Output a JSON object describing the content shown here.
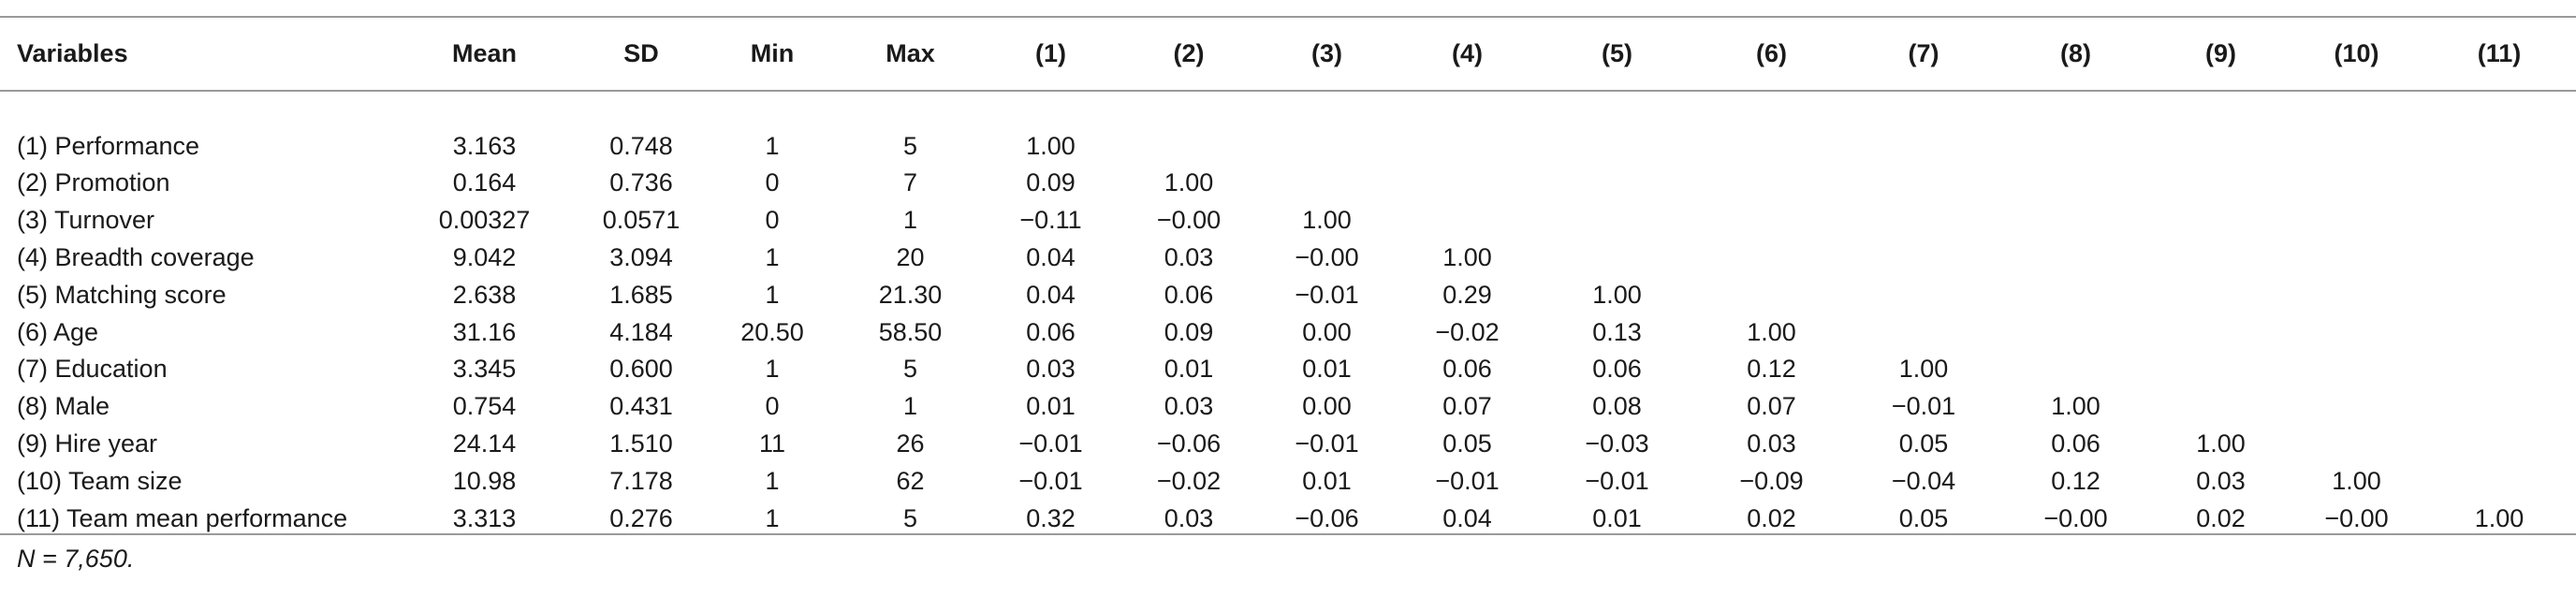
{
  "table": {
    "headers": [
      "Variables",
      "Mean",
      "SD",
      "Min",
      "Max",
      "(1)",
      "(2)",
      "(3)",
      "(4)",
      "(5)",
      "(6)",
      "(7)",
      "(8)",
      "(9)",
      "(10)",
      "(11)"
    ],
    "rows": [
      [
        "(1) Performance",
        "3.163",
        "0.748",
        "1",
        "5",
        "1.00",
        "",
        "",
        "",
        "",
        "",
        "",
        "",
        "",
        "",
        ""
      ],
      [
        "(2) Promotion",
        "0.164",
        "0.736",
        "0",
        "7",
        "0.09",
        "1.00",
        "",
        "",
        "",
        "",
        "",
        "",
        "",
        "",
        ""
      ],
      [
        "(3) Turnover",
        "0.00327",
        "0.0571",
        "0",
        "1",
        "−0.11",
        "−0.00",
        "1.00",
        "",
        "",
        "",
        "",
        "",
        "",
        "",
        ""
      ],
      [
        "(4) Breadth coverage",
        "9.042",
        "3.094",
        "1",
        "20",
        "0.04",
        "0.03",
        "−0.00",
        "1.00",
        "",
        "",
        "",
        "",
        "",
        "",
        ""
      ],
      [
        "(5) Matching score",
        "2.638",
        "1.685",
        "1",
        "21.30",
        "0.04",
        "0.06",
        "−0.01",
        "0.29",
        "1.00",
        "",
        "",
        "",
        "",
        "",
        ""
      ],
      [
        "(6) Age",
        "31.16",
        "4.184",
        "20.50",
        "58.50",
        "0.06",
        "0.09",
        "0.00",
        "−0.02",
        "0.13",
        "1.00",
        "",
        "",
        "",
        "",
        ""
      ],
      [
        "(7) Education",
        "3.345",
        "0.600",
        "1",
        "5",
        "0.03",
        "0.01",
        "0.01",
        "0.06",
        "0.06",
        "0.12",
        "1.00",
        "",
        "",
        "",
        ""
      ],
      [
        "(8) Male",
        "0.754",
        "0.431",
        "0",
        "1",
        "0.01",
        "0.03",
        "0.00",
        "0.07",
        "0.08",
        "0.07",
        "−0.01",
        "1.00",
        "",
        "",
        ""
      ],
      [
        "(9) Hire year",
        "24.14",
        "1.510",
        "11",
        "26",
        "−0.01",
        "−0.06",
        "−0.01",
        "0.05",
        "−0.03",
        "0.03",
        "0.05",
        "0.06",
        "1.00",
        "",
        ""
      ],
      [
        "(10) Team size",
        "10.98",
        "7.178",
        "1",
        "62",
        "−0.01",
        "−0.02",
        "0.01",
        "−0.01",
        "−0.01",
        "−0.09",
        "−0.04",
        "0.12",
        "0.03",
        "1.00",
        ""
      ],
      [
        "(11) Team mean performance",
        "3.313",
        "0.276",
        "1",
        "5",
        "0.32",
        "0.03",
        "−0.06",
        "0.04",
        "0.01",
        "0.02",
        "0.05",
        "−0.00",
        "0.02",
        "−0.00",
        "1.00"
      ]
    ]
  },
  "note": "N = 7,650."
}
